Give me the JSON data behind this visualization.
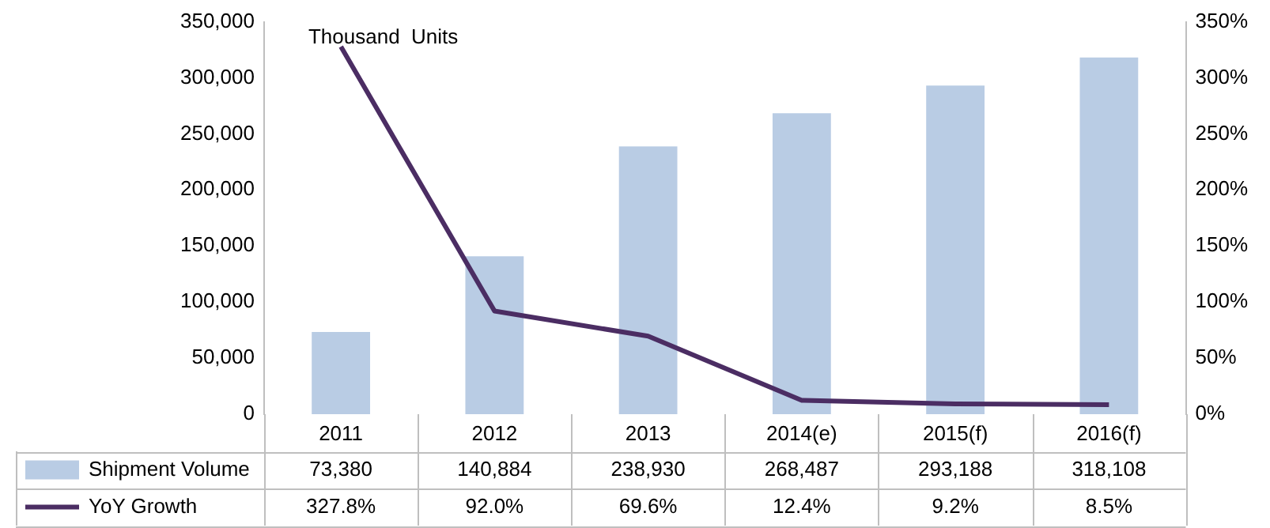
{
  "chart_data": {
    "type": "bar",
    "categories": [
      "2011",
      "2012",
      "2013",
      "2014(e)",
      "2015(f)",
      "2016(f)"
    ],
    "series": [
      {
        "name": "Shipment Volume",
        "color": "#b9cce4",
        "values": [
          73380,
          140884,
          238930,
          268487,
          293188,
          318108
        ],
        "value_labels": [
          "73,380",
          "140,884",
          "238,930",
          "268,487",
          "293,188",
          "318,108"
        ]
      },
      {
        "name": "YoY Growth",
        "type": "line",
        "axis": "y2",
        "color": "#4b2d63",
        "values": [
          327.8,
          92.0,
          69.6,
          12.4,
          9.2,
          8.5
        ],
        "value_labels": [
          "327.8%",
          "92.0%",
          "69.6%",
          "12.4%",
          "9.2%",
          "8.5%"
        ]
      }
    ],
    "ylim": [
      0,
      350000
    ],
    "yticks": [
      {
        "value": 0,
        "label": "0"
      },
      {
        "value": 50000,
        "label": "50,000"
      },
      {
        "value": 100000,
        "label": "100,000"
      },
      {
        "value": 150000,
        "label": "150,000"
      },
      {
        "value": 200000,
        "label": "200,000"
      },
      {
        "value": 250000,
        "label": "250,000"
      },
      {
        "value": 300000,
        "label": "300,000"
      },
      {
        "value": 350000,
        "label": "350,000"
      }
    ],
    "y2lim": [
      0,
      350
    ],
    "y2ticks": [
      {
        "value": 0,
        "label": "0%"
      },
      {
        "value": 50,
        "label": "50%"
      },
      {
        "value": 100,
        "label": "100%"
      },
      {
        "value": 150,
        "label": "150%"
      },
      {
        "value": 200,
        "label": "200%"
      },
      {
        "value": 250,
        "label": "250%"
      },
      {
        "value": 300,
        "label": "300%"
      },
      {
        "value": 350,
        "label": "350%"
      }
    ],
    "annotations": [
      "Thousand  Units"
    ],
    "legend": "bottom",
    "grid": false
  }
}
